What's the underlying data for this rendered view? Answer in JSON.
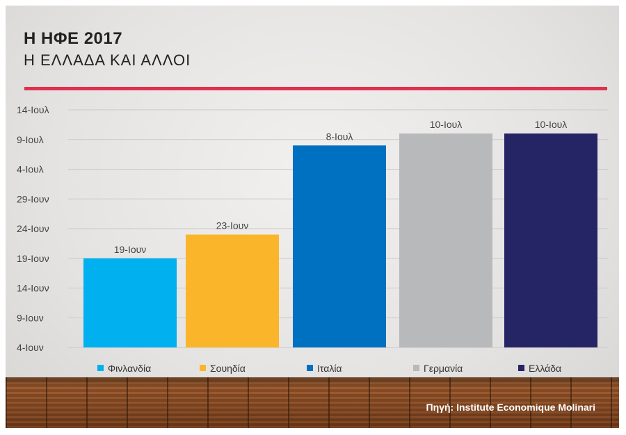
{
  "header": {
    "title": "Η ΗΦΕ 2017",
    "subtitle": "Η ΕΛΛΑΔΑ ΚΑΙ ΑΛΛΟΙ"
  },
  "source": "Πηγή: Institute Economique Molinari",
  "colors": {
    "accent_rule": "#e0304e",
    "grid": "#c9c8c7",
    "axis_text": "#444444"
  },
  "chart_data": {
    "type": "bar",
    "y_unit": "date (2017)",
    "y_ticks": [
      "4-Ιουν",
      "9-Ιουν",
      "14-Ιουν",
      "19-Ιουν",
      "24-Ιουν",
      "29-Ιουν",
      "4-Ιουλ",
      "9-Ιουλ",
      "14-Ιουλ"
    ],
    "ylim": [
      "2017-06-04",
      "2017-07-14"
    ],
    "grid": true,
    "legend_placement": "bottom",
    "categories": [
      "Φινλανδία",
      "Σουηδία",
      "Ιταλία",
      "Γερμανία",
      "Ελλάδα"
    ],
    "values": [
      "2017-06-19",
      "2017-06-23",
      "2017-07-08",
      "2017-07-10",
      "2017-07-10"
    ],
    "data_labels": [
      "19-Ιουν",
      "23-Ιουν",
      "8-Ιουλ",
      "10-Ιουλ",
      "10-Ιουλ"
    ],
    "bar_colors": [
      "#00b0ef",
      "#fbb52b",
      "#0070c0",
      "#b8b9bb",
      "#252464"
    ]
  }
}
